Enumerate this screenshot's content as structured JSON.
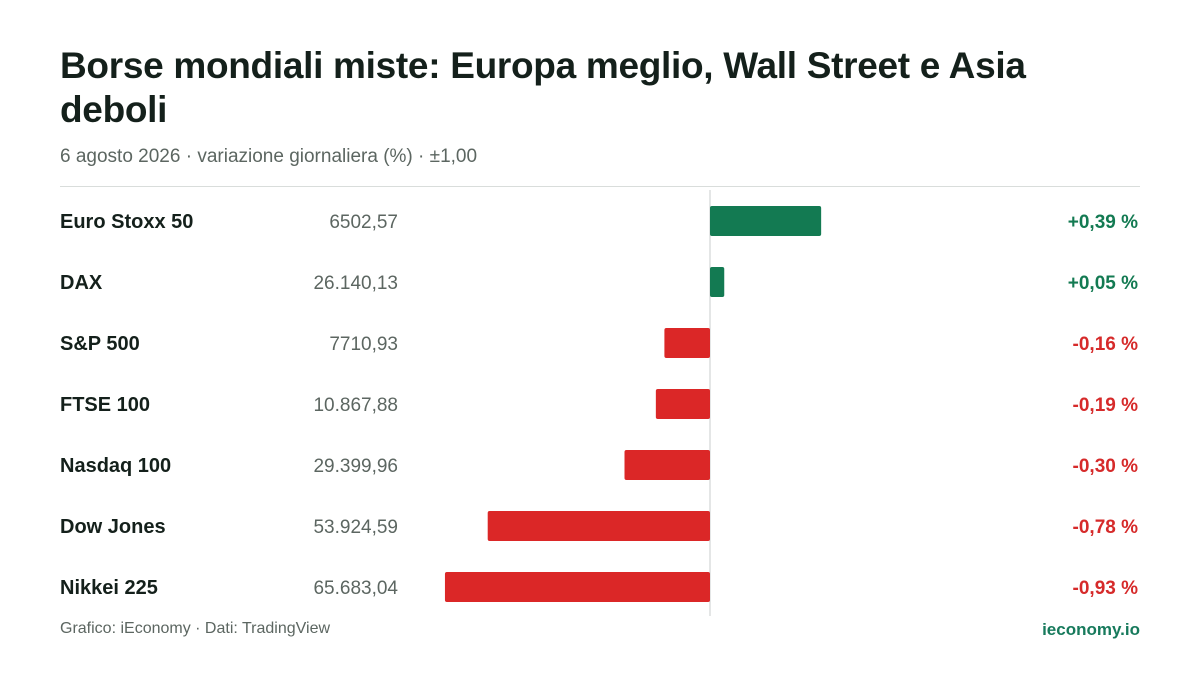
{
  "title": "Borse mondiali miste: Europa meglio, Wall Street e Asia deboli",
  "subtitle": "6 agosto 2026 · variazione giornaliera (%) · ±1,00",
  "footer": {
    "source": "Grafico: iEconomy · Dati: TradingView",
    "brand": "ieconomy.io"
  },
  "colors": {
    "positive": "#137a52",
    "negative": "#db2727",
    "positive_text": "#137a52",
    "negative_text": "#d62a2a"
  },
  "chart_data": {
    "type": "bar",
    "orientation": "horizontal",
    "xlim": [
      -1,
      1
    ],
    "categories": [
      "Euro Stoxx 50",
      "DAX",
      "S&P 500",
      "FTSE 100",
      "Nasdaq 100",
      "Dow Jones",
      "Nikkei 225"
    ],
    "levels": [
      "6502,57",
      "26.140,13",
      "7710,93",
      "10.867,88",
      "29.399,96",
      "53.924,59",
      "65.683,04"
    ],
    "values": [
      0.39,
      0.05,
      -0.16,
      -0.19,
      -0.3,
      -0.78,
      -0.93
    ],
    "value_labels": [
      "+0,39 %",
      "+0,05 %",
      "-0,16 %",
      "-0,19 %",
      "-0,30 %",
      "-0,78 %",
      "-0,93 %"
    ]
  }
}
